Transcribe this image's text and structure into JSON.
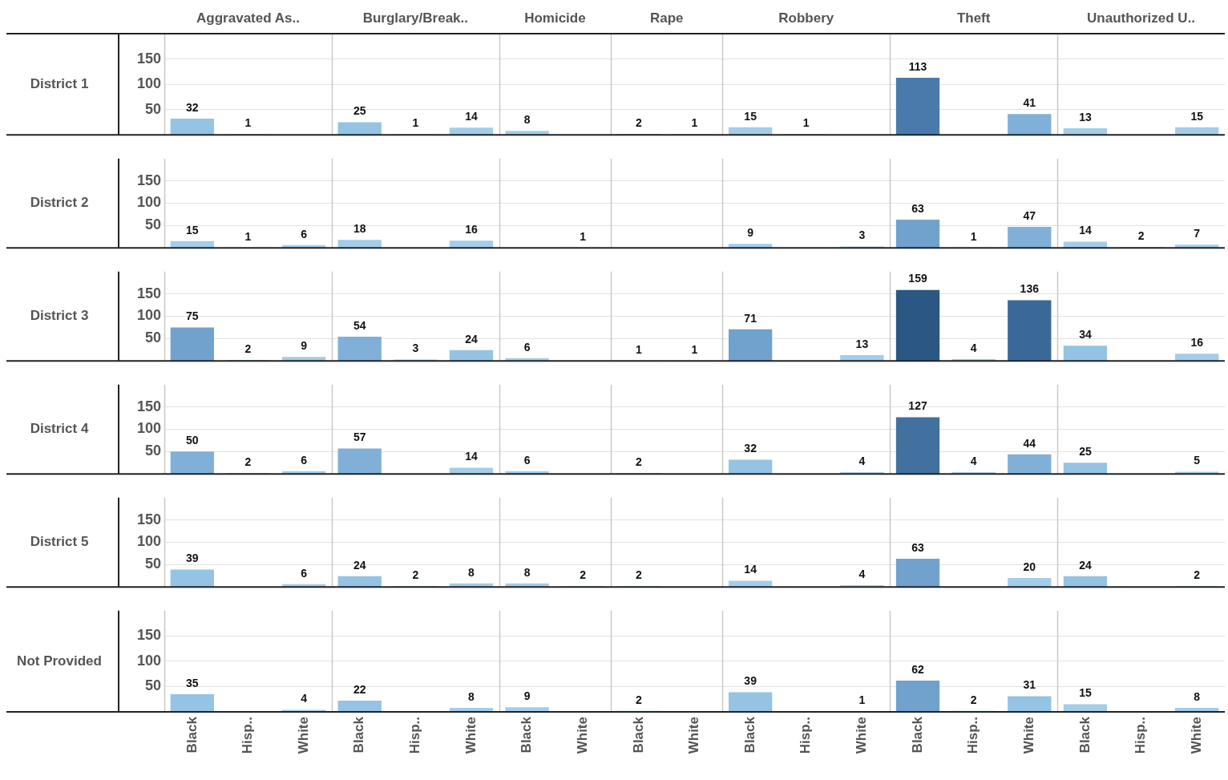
{
  "chart_data": [
    {
      "type": "bar",
      "ylabel": "District 1",
      "annotations": [
        "Aggravated As..",
        "Burglary/Break..",
        "Homicide",
        "Rape",
        "Robbery",
        "Theft",
        "Unauthorized U.."
      ],
      "categories": [
        "Black",
        "Hisp..",
        "White",
        "Black",
        "Hisp..",
        "White",
        "Black",
        "White",
        "Black",
        "White",
        "Black",
        "Hisp..",
        "White",
        "Black",
        "Hisp..",
        "White",
        "Black",
        "Hisp..",
        "White"
      ],
      "values": [
        32,
        1,
        null,
        25,
        1,
        14,
        8,
        null,
        2,
        1,
        15,
        1,
        null,
        113,
        null,
        41,
        13,
        null,
        15
      ],
      "colors": [
        "#94c3e4",
        "#a3cde9",
        null,
        "#94c3e4",
        "#a3cde9",
        "#a3cde9",
        "#a3cde9",
        null,
        "#a3cde9",
        "#a3cde9",
        "#a3cde9",
        "#a3cde9",
        null,
        "#4a7aac",
        null,
        "#80b0d8",
        "#a3cde9",
        null,
        "#a3cde9"
      ],
      "ylim": [
        0,
        200
      ],
      "yticks": [
        50,
        100,
        150
      ],
      "grid": "y",
      "data_labels": true,
      "tick_labels": "y"
    },
    {
      "type": "bar",
      "ylabel": "District 2",
      "categories": [
        "Black",
        "Hisp..",
        "White",
        "Black",
        "Hisp..",
        "White",
        "Black",
        "White",
        "Black",
        "White",
        "Black",
        "Hisp..",
        "White",
        "Black",
        "Hisp..",
        "White",
        "Black",
        "Hisp..",
        "White"
      ],
      "values": [
        15,
        1,
        6,
        18,
        null,
        16,
        null,
        1,
        null,
        null,
        9,
        null,
        3,
        63,
        1,
        47,
        14,
        2,
        7
      ],
      "colors": [
        "#a3cde9",
        "#a3cde9",
        "#a3cde9",
        "#a3cde9",
        null,
        "#a3cde9",
        null,
        "#a3cde9",
        null,
        null,
        "#a3cde9",
        null,
        "#a3cde9",
        "#71a2cd",
        "#a3cde9",
        "#80b0d8",
        "#a3cde9",
        "#a3cde9",
        "#a3cde9"
      ],
      "ylim": [
        0,
        200
      ],
      "yticks": [
        50,
        100,
        150
      ],
      "grid": "y",
      "data_labels": true,
      "tick_labels": "y"
    },
    {
      "type": "bar",
      "ylabel": "District 3",
      "categories": [
        "Black",
        "Hisp..",
        "White",
        "Black",
        "Hisp..",
        "White",
        "Black",
        "White",
        "Black",
        "White",
        "Black",
        "Hisp..",
        "White",
        "Black",
        "Hisp..",
        "White",
        "Black",
        "Hisp..",
        "White"
      ],
      "values": [
        75,
        2,
        9,
        54,
        3,
        24,
        6,
        null,
        1,
        1,
        71,
        null,
        13,
        159,
        4,
        136,
        34,
        null,
        16
      ],
      "colors": [
        "#71a2cd",
        "#a3cde9",
        "#a3cde9",
        "#80b0d8",
        "#a3cde9",
        "#94c3e4",
        "#a3cde9",
        null,
        "#a3cde9",
        "#a3cde9",
        "#71a2cd",
        null,
        "#a3cde9",
        "#2a5783",
        "#a3cde9",
        "#3a6999",
        "#94c3e4",
        null,
        "#a3cde9"
      ],
      "ylim": [
        0,
        200
      ],
      "yticks": [
        50,
        100,
        150
      ],
      "grid": "y",
      "data_labels": true,
      "tick_labels": "y"
    },
    {
      "type": "bar",
      "ylabel": "District 4",
      "categories": [
        "Black",
        "Hisp..",
        "White",
        "Black",
        "Hisp..",
        "White",
        "Black",
        "White",
        "Black",
        "White",
        "Black",
        "Hisp..",
        "White",
        "Black",
        "Hisp..",
        "White",
        "Black",
        "Hisp..",
        "White"
      ],
      "values": [
        50,
        2,
        6,
        57,
        null,
        14,
        6,
        null,
        2,
        null,
        32,
        null,
        4,
        127,
        4,
        44,
        25,
        null,
        5
      ],
      "colors": [
        "#80b0d8",
        "#a3cde9",
        "#a3cde9",
        "#80b0d8",
        null,
        "#a3cde9",
        "#a3cde9",
        null,
        "#a3cde9",
        null,
        "#94c3e4",
        null,
        "#a3cde9",
        "#42719f",
        "#a3cde9",
        "#80b0d8",
        "#94c3e4",
        null,
        "#a3cde9"
      ],
      "ylim": [
        0,
        200
      ],
      "yticks": [
        50,
        100,
        150
      ],
      "grid": "y",
      "data_labels": true,
      "tick_labels": "y"
    },
    {
      "type": "bar",
      "ylabel": "District 5",
      "categories": [
        "Black",
        "Hisp..",
        "White",
        "Black",
        "Hisp..",
        "White",
        "Black",
        "White",
        "Black",
        "White",
        "Black",
        "Hisp..",
        "White",
        "Black",
        "Hisp..",
        "White",
        "Black",
        "Hisp..",
        "White"
      ],
      "values": [
        39,
        null,
        6,
        24,
        2,
        8,
        8,
        2,
        2,
        null,
        14,
        null,
        4,
        63,
        null,
        20,
        24,
        null,
        2
      ],
      "colors": [
        "#94c3e4",
        null,
        "#a3cde9",
        "#94c3e4",
        "#a3cde9",
        "#a3cde9",
        "#a3cde9",
        "#a3cde9",
        "#a3cde9",
        null,
        "#a3cde9",
        null,
        "#a3cde9",
        "#71a2cd",
        null,
        "#a3cde9",
        "#94c3e4",
        null,
        "#a3cde9"
      ],
      "ylim": [
        0,
        200
      ],
      "yticks": [
        50,
        100,
        150
      ],
      "grid": "y",
      "data_labels": true,
      "tick_labels": "y"
    },
    {
      "type": "bar",
      "ylabel": "Not Provided",
      "categories": [
        "Black",
        "Hisp..",
        "White",
        "Black",
        "Hisp..",
        "White",
        "Black",
        "White",
        "Black",
        "White",
        "Black",
        "Hisp..",
        "White",
        "Black",
        "Hisp..",
        "White",
        "Black",
        "Hisp..",
        "White"
      ],
      "values": [
        35,
        null,
        4,
        22,
        null,
        8,
        9,
        null,
        2,
        null,
        39,
        null,
        1,
        62,
        2,
        31,
        15,
        null,
        8
      ],
      "colors": [
        "#94c3e4",
        null,
        "#a3cde9",
        "#94c3e4",
        null,
        "#a3cde9",
        "#a3cde9",
        null,
        "#a3cde9",
        null,
        "#94c3e4",
        null,
        "#a3cde9",
        "#71a2cd",
        "#a3cde9",
        "#94c3e4",
        "#a3cde9",
        null,
        "#a3cde9"
      ],
      "ylim": [
        0,
        200
      ],
      "yticks": [
        50,
        100,
        150
      ],
      "grid": "y",
      "data_labels": true
    }
  ]
}
